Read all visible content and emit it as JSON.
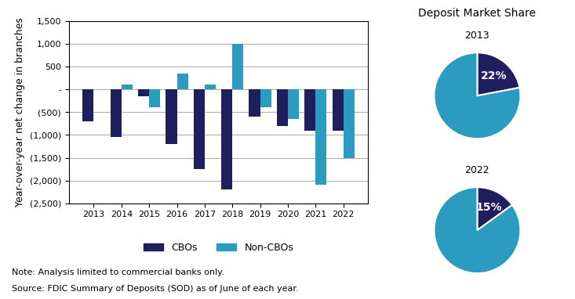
{
  "chart_data": [
    {
      "type": "bar",
      "categories": [
        "2013",
        "2014",
        "2015",
        "2016",
        "2017",
        "2018",
        "2019",
        "2020",
        "2021",
        "2022"
      ],
      "series": [
        {
          "name": "CBOs",
          "color": "#1f1f5e",
          "values": [
            -700,
            -1050,
            -150,
            -1200,
            -1750,
            -2200,
            -600,
            -800,
            -900,
            -900
          ]
        },
        {
          "name": "Non-CBOs",
          "color": "#2b9bbf",
          "values": [
            0,
            100,
            -400,
            350,
            100,
            1000,
            -400,
            -650,
            -2100,
            -1500
          ]
        }
      ],
      "ylabel": "Year-over-year net change in branches",
      "ylim": [
        -2500,
        1500
      ],
      "yticks": [
        {
          "value": -2500,
          "label": "(2,500)"
        },
        {
          "value": -2000,
          "label": "(2,000)"
        },
        {
          "value": -1500,
          "label": "(1,500)"
        },
        {
          "value": -1000,
          "label": "(1,000)"
        },
        {
          "value": -500,
          "label": "(500)"
        },
        {
          "value": 0,
          "label": "-"
        },
        500,
        {
          "value": 1000,
          "label": "1,000"
        },
        {
          "value": 1500,
          "label": "1,500"
        }
      ],
      "grid": true,
      "legend": "lower center",
      "annotations": [
        "Note: Analysis limited to commercial banks only.",
        "Source: FDIC Summary of Deposits (SOD) as of June of each year."
      ]
    },
    {
      "type": "pie",
      "title": "Deposit Market Share",
      "subtitle": "2013",
      "values": [
        22,
        78
      ],
      "value_labels": [
        "22%",
        null
      ],
      "colors": [
        "#1f1f5e",
        "#2b9bbf"
      ],
      "data_labels": true
    },
    {
      "type": "pie",
      "title": "2022",
      "values": [
        15,
        85
      ],
      "value_labels": [
        "15%",
        null
      ],
      "colors": [
        "#1f1f5e",
        "#2b9bbf"
      ],
      "data_labels": true
    }
  ]
}
